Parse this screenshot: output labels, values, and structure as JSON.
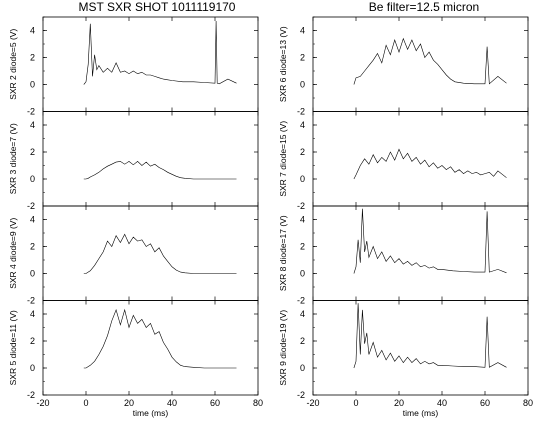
{
  "left_title": "MST SXR SHOT 1011119170",
  "right_title": "Be filter=12.5 micron",
  "chart_data": {
    "type": "line",
    "xlabel": "time (ms)",
    "xlim": [
      -20,
      80
    ],
    "x_ticks": [
      "-20",
      "0",
      "20",
      "40",
      "60",
      "80"
    ],
    "ylim": [
      -2,
      5
    ],
    "y_ticks": [
      "-2",
      "0",
      "2",
      "4"
    ],
    "grid": false,
    "panels": [
      {
        "column": "left",
        "ylabel": "SXR 2 diode=5 (V)",
        "x": [
          -1,
          0,
          1,
          2,
          3,
          4,
          5,
          6,
          8,
          10,
          12,
          14,
          16,
          18,
          20,
          22,
          24,
          26,
          28,
          30,
          32,
          34,
          36,
          38,
          40,
          45,
          50,
          55,
          60,
          60.5,
          61,
          62,
          66,
          70
        ],
        "y": [
          0,
          0.2,
          1.5,
          4.5,
          0.6,
          2.2,
          1.1,
          1.4,
          0.9,
          1.2,
          0.9,
          1.6,
          0.9,
          1.0,
          0.8,
          1.0,
          0.8,
          0.9,
          0.7,
          0.7,
          0.6,
          0.5,
          0.4,
          0.35,
          0.3,
          0.2,
          0.2,
          0.15,
          0.1,
          4.7,
          0.1,
          0.05,
          0.4,
          0.1
        ]
      },
      {
        "column": "left",
        "ylabel": "SXR 3 diode=7 (V)",
        "x": [
          -1,
          0,
          1,
          2,
          4,
          6,
          8,
          10,
          12,
          14,
          16,
          18,
          20,
          22,
          24,
          26,
          28,
          30,
          32,
          34,
          36,
          38,
          40,
          42,
          44,
          46,
          50,
          55,
          60,
          65,
          70
        ],
        "y": [
          0,
          0,
          0.05,
          0.15,
          0.3,
          0.5,
          0.75,
          0.95,
          1.1,
          1.25,
          1.3,
          1.1,
          1.3,
          1.05,
          1.3,
          1.0,
          1.25,
          0.95,
          1.1,
          0.85,
          0.7,
          0.5,
          0.35,
          0.2,
          0.1,
          0.05,
          0,
          0,
          0,
          0,
          0
        ]
      },
      {
        "column": "left",
        "ylabel": "SXR 4 diode=9 (V)",
        "x": [
          -1,
          0,
          2,
          4,
          6,
          8,
          10,
          12,
          14,
          16,
          18,
          20,
          22,
          24,
          26,
          28,
          30,
          32,
          34,
          36,
          38,
          40,
          42,
          44,
          46,
          50,
          55,
          60,
          65,
          70
        ],
        "y": [
          0,
          0,
          0.2,
          0.6,
          1.1,
          1.6,
          2.4,
          2.0,
          2.8,
          2.3,
          2.9,
          2.2,
          2.7,
          2.4,
          2.5,
          2.0,
          2.2,
          1.6,
          1.9,
          1.3,
          0.9,
          0.5,
          0.25,
          0.1,
          0.05,
          0,
          0,
          0,
          0,
          0
        ]
      },
      {
        "column": "left",
        "ylabel": "SXR 5 diode=11 (V)",
        "x": [
          -1,
          0,
          2,
          4,
          6,
          8,
          10,
          12,
          14,
          16,
          18,
          20,
          22,
          24,
          26,
          28,
          30,
          32,
          34,
          36,
          38,
          40,
          42,
          44,
          46,
          50,
          55,
          60,
          65,
          70
        ],
        "y": [
          0,
          0,
          0.2,
          0.5,
          1.0,
          1.6,
          2.4,
          3.5,
          4.3,
          3.2,
          4.3,
          3.0,
          3.9,
          3.3,
          3.6,
          3.0,
          3.3,
          2.5,
          2.7,
          1.9,
          1.4,
          0.8,
          0.45,
          0.2,
          0.1,
          0.05,
          0,
          0,
          0,
          0
        ]
      },
      {
        "column": "right",
        "ylabel": "SXR 6 diode=13 (V)",
        "x": [
          -1,
          0,
          2,
          4,
          6,
          8,
          10,
          12,
          14,
          16,
          18,
          20,
          22,
          24,
          26,
          28,
          30,
          32,
          34,
          36,
          38,
          40,
          42,
          44,
          46,
          50,
          55,
          60,
          61,
          62,
          66,
          70
        ],
        "y": [
          0,
          0.5,
          0.6,
          1.0,
          1.4,
          1.8,
          2.3,
          1.6,
          2.9,
          2.2,
          3.3,
          2.4,
          3.4,
          2.6,
          3.3,
          2.5,
          3.0,
          2.0,
          2.4,
          1.8,
          1.5,
          1.1,
          0.7,
          0.4,
          0.2,
          0.1,
          0.05,
          0.05,
          2.8,
          0.05,
          0.6,
          0.1
        ]
      },
      {
        "column": "right",
        "ylabel": "SXR 7 diode=15 (V)",
        "x": [
          -1,
          0,
          2,
          4,
          6,
          8,
          10,
          12,
          14,
          16,
          18,
          20,
          22,
          24,
          26,
          28,
          30,
          32,
          34,
          36,
          38,
          40,
          42,
          44,
          46,
          48,
          50,
          52,
          54,
          56,
          58,
          60,
          62,
          64,
          66,
          70
        ],
        "y": [
          0,
          0.3,
          1.0,
          1.5,
          1.1,
          1.8,
          1.2,
          1.6,
          1.3,
          2.0,
          1.4,
          2.2,
          1.5,
          1.9,
          1.3,
          1.6,
          1.1,
          1.4,
          0.9,
          1.2,
          0.8,
          1.0,
          0.7,
          0.9,
          0.5,
          0.7,
          0.4,
          0.6,
          0.4,
          0.5,
          0.3,
          0.4,
          0.5,
          0.2,
          0.6,
          0.1
        ]
      },
      {
        "column": "right",
        "ylabel": "SXR 8 diode=17 (V)",
        "x": [
          -1,
          0,
          1,
          2,
          3,
          4,
          5,
          6,
          8,
          10,
          12,
          14,
          16,
          18,
          20,
          22,
          24,
          26,
          28,
          30,
          32,
          34,
          36,
          38,
          40,
          45,
          50,
          55,
          60,
          61,
          62,
          66,
          70
        ],
        "y": [
          0,
          0.5,
          2.5,
          0.8,
          4.8,
          1.6,
          2.4,
          1.2,
          2.0,
          1.1,
          1.6,
          0.9,
          1.3,
          0.8,
          1.1,
          0.7,
          0.9,
          0.6,
          0.8,
          0.5,
          0.6,
          0.4,
          0.5,
          0.3,
          0.3,
          0.2,
          0.15,
          0.1,
          0.1,
          4.6,
          0.1,
          0.3,
          0.05
        ]
      },
      {
        "column": "right",
        "ylabel": "SXR 9 diode=19 (V)",
        "x": [
          -1,
          0,
          1,
          2,
          3,
          4,
          5,
          6,
          8,
          10,
          12,
          14,
          16,
          18,
          20,
          22,
          24,
          26,
          28,
          30,
          32,
          34,
          36,
          38,
          40,
          45,
          50,
          55,
          60,
          61,
          62,
          66,
          70
        ],
        "y": [
          0,
          0.5,
          4.8,
          1.0,
          4.3,
          1.8,
          2.6,
          1.0,
          1.9,
          0.8,
          1.3,
          0.6,
          1.1,
          0.5,
          0.9,
          0.4,
          0.8,
          0.4,
          0.7,
          0.3,
          0.5,
          0.3,
          0.4,
          0.2,
          0.2,
          0.15,
          0.1,
          0.1,
          0.05,
          3.8,
          0.05,
          0.4,
          0.05
        ]
      }
    ]
  }
}
